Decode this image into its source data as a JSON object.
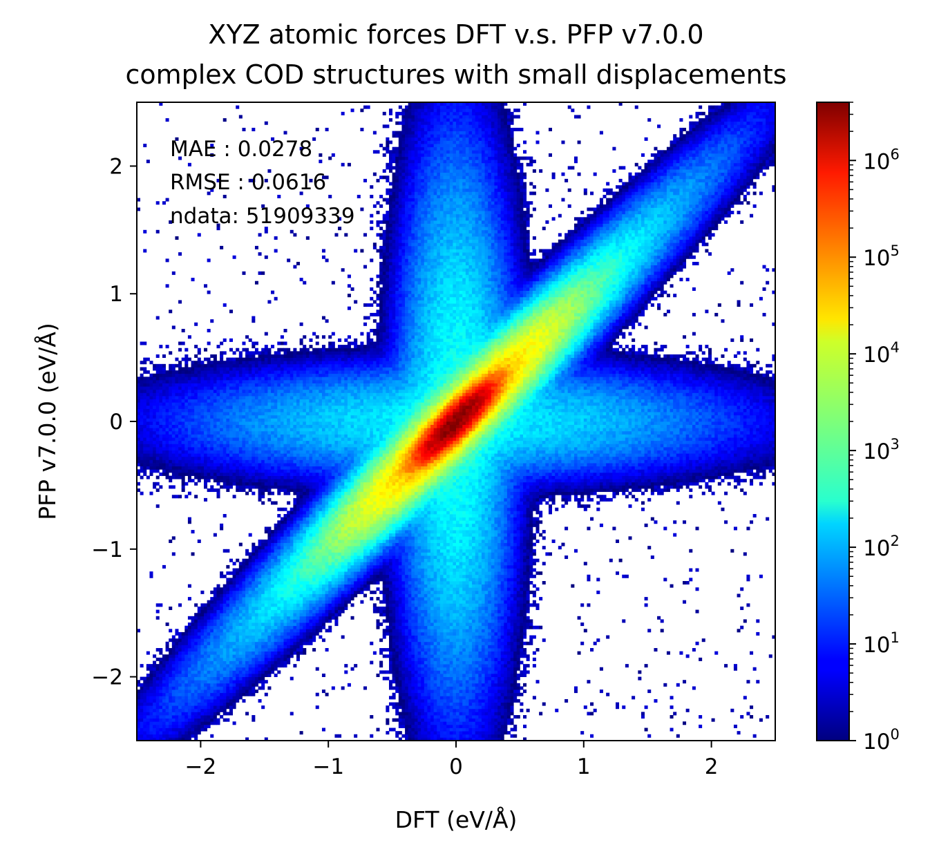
{
  "chart_data": {
    "type": "heatmap",
    "title_lines": [
      "XYZ atomic forces DFT v.s. PFP v7.0.0",
      "complex COD structures with small displacements"
    ],
    "xlabel": "DFT (eV/Å)",
    "ylabel": "PFP v7.0.0 (eV/Å)",
    "xlim": [
      -2.5,
      2.5
    ],
    "ylim": [
      -2.5,
      2.5
    ],
    "xticks": [
      -2,
      -1,
      0,
      1,
      2
    ],
    "yticks": [
      -2,
      -1,
      0,
      1,
      2
    ],
    "xtick_labels": [
      "−2",
      "−1",
      "0",
      "1",
      "2"
    ],
    "ytick_labels": [
      "−2",
      "−1",
      "0",
      "1",
      "2"
    ],
    "annotation_lines": [
      "MAE : 0.0278",
      "RMSE : 0.0616",
      "ndata: 51909339"
    ],
    "colorbar": {
      "scale": "log",
      "colormap": "jet",
      "range": [
        1,
        4000000
      ],
      "tick_bases": [
        "10",
        "10",
        "10",
        "10",
        "10",
        "10",
        "10"
      ],
      "tick_exponents": [
        "0",
        "1",
        "2",
        "3",
        "4",
        "5",
        "6"
      ],
      "tick_values": [
        1,
        10,
        100,
        1000,
        10000,
        100000,
        1000000
      ]
    },
    "density_model": {
      "description_of_shape": "log-density 2D histogram concentrated along the y=x diagonal with broad vertical and horizontal wings",
      "peak_count": 4000000,
      "diagonal_components": [
        {
          "sigma_along": 0.18,
          "sigma_across": 0.045,
          "amplitude_log10": 6.6
        },
        {
          "sigma_along": 0.55,
          "sigma_across": 0.09,
          "amplitude_log10": 4.6
        },
        {
          "sigma_along": 1.1,
          "sigma_across": 0.12,
          "amplitude_log10": 3.0
        }
      ],
      "wing_components": [
        {
          "direction": "vertical",
          "sigma_x": 0.18,
          "sigma_y": 0.9,
          "amplitude_log10": 2.6
        },
        {
          "direction": "horizontal",
          "sigma_x": 0.9,
          "sigma_y": 0.18,
          "amplitude_log10": 2.4
        }
      ],
      "bin_count": 200
    }
  }
}
